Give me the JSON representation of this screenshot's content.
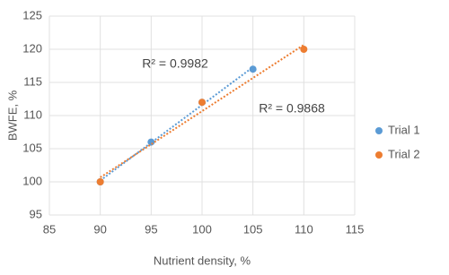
{
  "chart_data": {
    "type": "scatter",
    "x_label": "Nutrient density, %",
    "y_label": "BWFE, %",
    "xlim": [
      85,
      115
    ],
    "xticks": [
      85,
      90,
      95,
      100,
      105,
      110,
      115
    ],
    "ylim": [
      95,
      125
    ],
    "yticks": [
      95,
      100,
      105,
      110,
      115,
      120,
      125
    ],
    "grid": true,
    "legend": "right",
    "trendline": true,
    "series": [
      {
        "name": "Trial 1",
        "color": "#5b9bd5",
        "x": [
          90,
          95,
          100,
          105
        ],
        "values": [
          100,
          106,
          112,
          117
        ]
      },
      {
        "name": "Trial 2",
        "color": "#ed7d31",
        "x": [
          90,
          100,
          110
        ],
        "values": [
          100,
          112,
          120
        ]
      }
    ],
    "annotations": [
      "R² = 0.9982",
      "R² = 0.9868"
    ]
  }
}
